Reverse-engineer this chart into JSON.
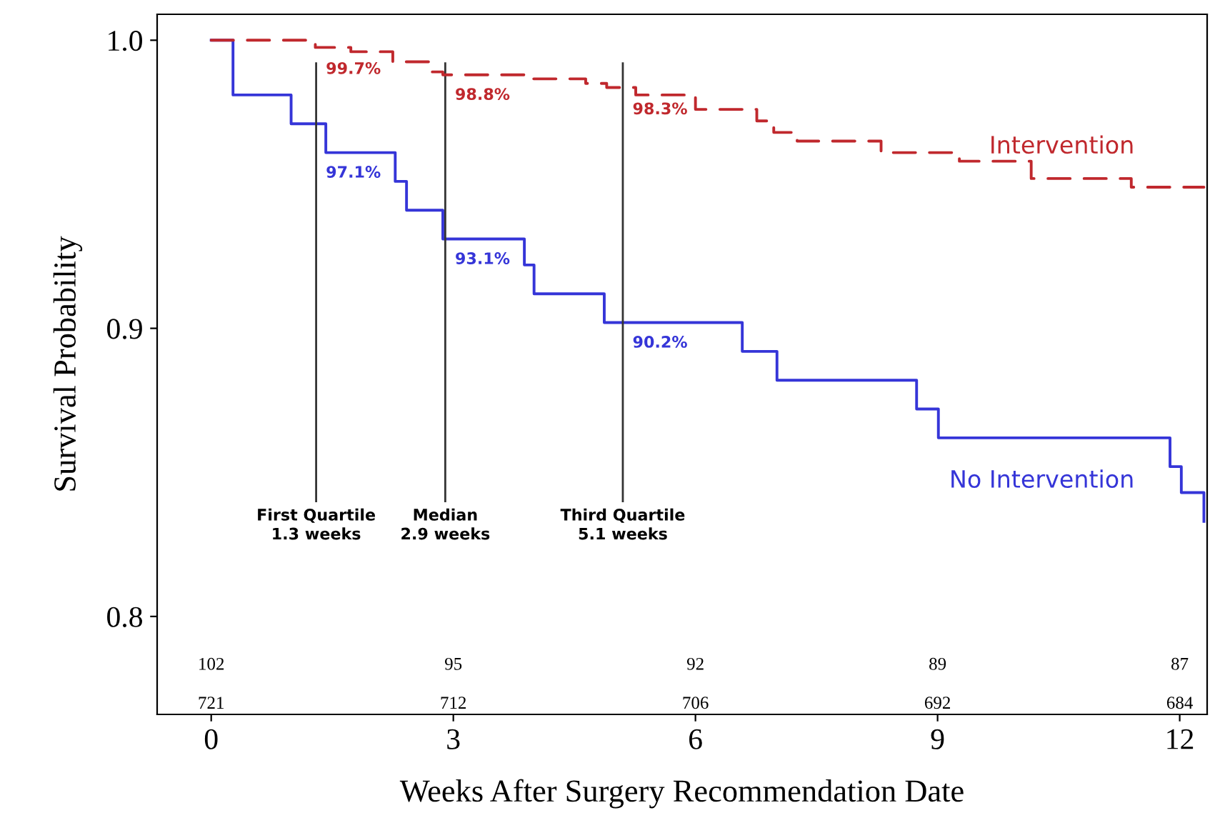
{
  "chart_data": {
    "type": "step",
    "xlabel": "Weeks After Surgery Recommendation Date",
    "ylabel": "Survival Probability",
    "xlim": [
      -0.67,
      12.34
    ],
    "ylim": [
      0.766,
      1.009
    ],
    "xticks": [
      0,
      3,
      6,
      9,
      12
    ],
    "yticks": [
      0.8,
      0.9,
      {
        "value": 1.0,
        "label": "1.0"
      }
    ],
    "grid": false,
    "series": [
      {
        "name": "Intervention",
        "color": "#c0282d",
        "line_style": "dashed",
        "x": [
          0,
          1.29,
          1.73,
          2.25,
          2.71,
          2.87,
          3.98,
          4.64,
          4.9,
          5.26,
          6.0,
          6.76,
          6.97,
          7.26,
          8.3,
          9.27,
          10.16,
          11.4,
          12.3
        ],
        "values": [
          1.0,
          0.9975,
          0.996,
          0.9925,
          0.989,
          0.988,
          0.9866,
          0.985,
          0.9836,
          0.981,
          0.976,
          0.972,
          0.968,
          0.965,
          0.961,
          0.958,
          0.952,
          0.949,
          0.949
        ]
      },
      {
        "name": "No Intervention",
        "color": "#3535d8",
        "line_style": "solid",
        "x": [
          0,
          0.27,
          0.99,
          1.42,
          2.28,
          2.42,
          2.87,
          3.88,
          4.0,
          4.87,
          6.58,
          7.01,
          8.74,
          9.01,
          11.88,
          12.02,
          12.3
        ],
        "values": [
          1.0,
          0.981,
          0.971,
          0.961,
          0.951,
          0.941,
          0.931,
          0.922,
          0.912,
          0.902,
          0.892,
          0.882,
          0.872,
          0.862,
          0.852,
          0.843,
          0.833
        ]
      }
    ],
    "ref_lines": [
      {
        "axis": "x",
        "value": 1.3,
        "label": "First Quartile\n1.3 weeks",
        "color": "#333333"
      },
      {
        "axis": "x",
        "value": 2.9,
        "label": "Median\n2.9 weeks",
        "color": "#333333"
      },
      {
        "axis": "x",
        "value": 5.1,
        "label": "Third Quartile\n5.1 weeks",
        "color": "#333333"
      }
    ],
    "annotations": [
      {
        "text": "99.7%",
        "x": 1.3,
        "y": 0.997
      },
      {
        "text": "98.8%",
        "x": 2.9,
        "y": 0.988
      },
      {
        "text": "98.3%",
        "x": 5.1,
        "y": 0.983
      },
      {
        "text": "97.1%",
        "x": 1.3,
        "y": 0.961
      },
      {
        "text": "93.1%",
        "x": 2.9,
        "y": 0.931
      },
      {
        "text": "90.2%",
        "x": 5.1,
        "y": 0.902
      },
      "102",
      "95",
      "92",
      "89",
      "87",
      "721",
      "712",
      "706",
      "692",
      "684"
    ]
  }
}
